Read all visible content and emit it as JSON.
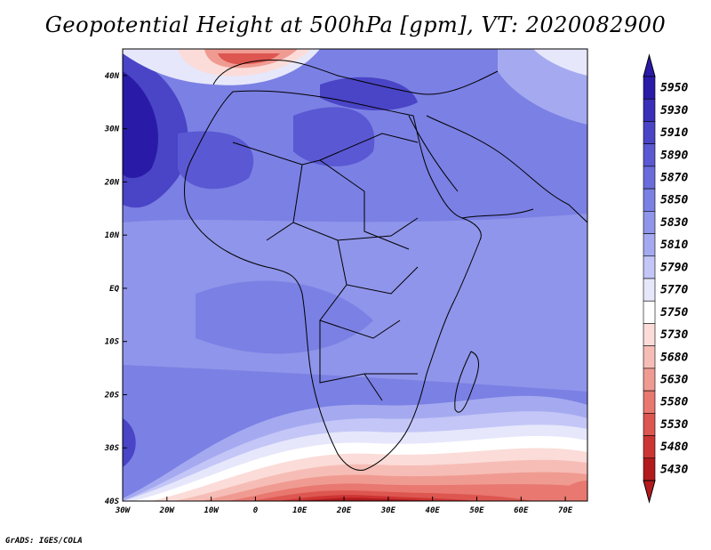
{
  "title": "Geopotential Height at 500hPa [gpm], VT: 2020082900",
  "footer": "GrADS: IGES/COLA",
  "map": {
    "projection": "latlon",
    "lon_range": [
      -30,
      75
    ],
    "lat_range": [
      -40,
      45
    ],
    "x_ticks": [
      "30W",
      "20W",
      "10W",
      "0",
      "10E",
      "20E",
      "30E",
      "40E",
      "50E",
      "60E",
      "70E"
    ],
    "y_ticks": [
      "40N",
      "30N",
      "20N",
      "10N",
      "EQ",
      "10S",
      "20S",
      "30S",
      "40S"
    ]
  },
  "colorbar": {
    "labels": [
      "5950",
      "5930",
      "5910",
      "5890",
      "5870",
      "5850",
      "5830",
      "5810",
      "5790",
      "5770",
      "5750",
      "5730",
      "5680",
      "5630",
      "5580",
      "5530",
      "5480",
      "5430"
    ],
    "colors_top_to_bottom": [
      "#2a1aa8",
      "#3a2fb8",
      "#4a44c6",
      "#5a58d2",
      "#6a6cdc",
      "#7b80e4",
      "#8f95ea",
      "#a5aaf0",
      "#c3c6f6",
      "#e6e7fb",
      "#ffffff",
      "#fbdcd8",
      "#f6bdb6",
      "#f09b92",
      "#e87870",
      "#dd5650",
      "#cc3533",
      "#b21a1e"
    ]
  }
}
